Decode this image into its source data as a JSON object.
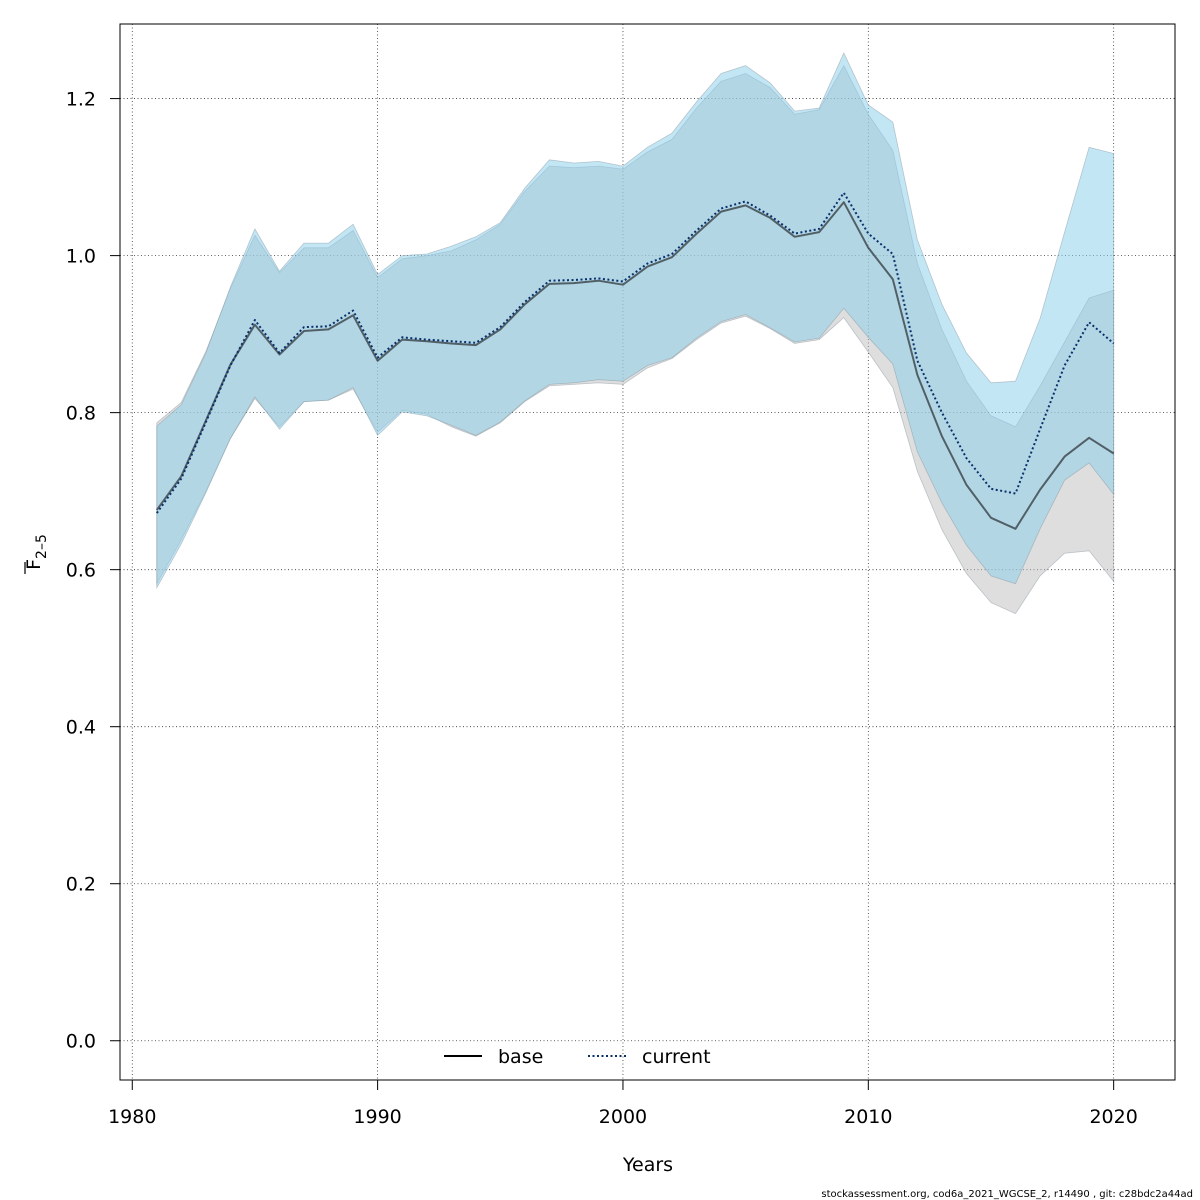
{
  "chart_data": {
    "type": "line",
    "xlabel": "Years",
    "ylabel": "F",
    "ylabel_sub": "2–5",
    "xlim": [
      1979.5,
      2022.5
    ],
    "ylim": [
      -0.05,
      1.295
    ],
    "xticks": [
      1980,
      1990,
      2000,
      2010,
      2020
    ],
    "yticks": [
      0.0,
      0.2,
      0.4,
      0.6,
      0.8,
      1.0,
      1.2
    ],
    "ytick_labels": [
      "0.0",
      "0.2",
      "0.4",
      "0.6",
      "0.8",
      "1.0",
      "1.2"
    ],
    "grid": true,
    "legend_position": "bottom",
    "footer": "stockassessment.org, cod6a_2021_WGCSE_2, r14490 , git: c28bdc2a44ad",
    "x": [
      1981,
      1982,
      1983,
      1984,
      1985,
      1986,
      1987,
      1988,
      1989,
      1990,
      1991,
      1992,
      1993,
      1994,
      1995,
      1996,
      1997,
      1998,
      1999,
      2000,
      2001,
      2002,
      2003,
      2004,
      2005,
      2006,
      2007,
      2008,
      2009,
      2010,
      2011,
      2012,
      2013,
      2014,
      2015,
      2016,
      2017,
      2018,
      2019,
      2020
    ],
    "series": [
      {
        "name": "base",
        "line_style": "solid",
        "line_color": "#000000",
        "band_color": "#bebebe",
        "values": [
          0.676,
          0.719,
          0.79,
          0.861,
          0.912,
          0.874,
          0.904,
          0.906,
          0.924,
          0.866,
          0.893,
          0.891,
          0.888,
          0.886,
          0.906,
          0.938,
          0.964,
          0.965,
          0.968,
          0.963,
          0.986,
          0.998,
          1.028,
          1.056,
          1.064,
          1.048,
          1.024,
          1.03,
          1.068,
          1.01,
          0.97,
          0.848,
          0.77,
          0.708,
          0.666,
          0.652,
          0.702,
          0.744,
          0.768,
          0.748
        ],
        "lower": [
          0.582,
          0.638,
          0.7,
          0.767,
          0.818,
          0.782,
          0.814,
          0.816,
          0.83,
          0.775,
          0.803,
          0.798,
          0.782,
          0.77,
          0.787,
          0.814,
          0.834,
          0.836,
          0.838,
          0.836,
          0.857,
          0.869,
          0.893,
          0.914,
          0.923,
          0.907,
          0.888,
          0.893,
          0.921,
          0.877,
          0.832,
          0.725,
          0.651,
          0.595,
          0.558,
          0.544,
          0.592,
          0.621,
          0.624,
          0.585
        ],
        "upper": [
          0.787,
          0.813,
          0.878,
          0.958,
          1.026,
          0.978,
          1.01,
          1.01,
          1.032,
          0.972,
          0.996,
          1.0,
          1.006,
          1.02,
          1.04,
          1.082,
          1.114,
          1.112,
          1.114,
          1.11,
          1.132,
          1.148,
          1.188,
          1.222,
          1.232,
          1.214,
          1.18,
          1.186,
          1.242,
          1.18,
          1.134,
          0.99,
          0.906,
          0.84,
          0.796,
          0.782,
          0.834,
          0.89,
          0.946,
          0.956
        ]
      },
      {
        "name": "current",
        "line_style": "dotted",
        "line_color": "#08306b",
        "band_color": "#87ceeb",
        "values": [
          0.672,
          0.716,
          0.788,
          0.86,
          0.918,
          0.876,
          0.909,
          0.91,
          0.93,
          0.87,
          0.896,
          0.893,
          0.891,
          0.889,
          0.909,
          0.941,
          0.968,
          0.969,
          0.971,
          0.967,
          0.99,
          1.002,
          1.032,
          1.06,
          1.069,
          1.051,
          1.028,
          1.034,
          1.08,
          1.028,
          1.002,
          0.866,
          0.8,
          0.742,
          0.703,
          0.697,
          0.779,
          0.86,
          0.915,
          0.888
        ],
        "lower": [
          0.577,
          0.633,
          0.698,
          0.767,
          0.82,
          0.779,
          0.814,
          0.816,
          0.832,
          0.771,
          0.801,
          0.796,
          0.784,
          0.771,
          0.788,
          0.815,
          0.836,
          0.838,
          0.842,
          0.84,
          0.86,
          0.87,
          0.895,
          0.916,
          0.925,
          0.908,
          0.89,
          0.895,
          0.933,
          0.896,
          0.862,
          0.75,
          0.685,
          0.631,
          0.592,
          0.582,
          0.652,
          0.714,
          0.736,
          0.696
        ],
        "upper": [
          0.783,
          0.81,
          0.876,
          0.96,
          1.034,
          0.98,
          1.016,
          1.016,
          1.04,
          0.976,
          1.0,
          1.002,
          1.012,
          1.024,
          1.042,
          1.086,
          1.122,
          1.118,
          1.12,
          1.114,
          1.138,
          1.156,
          1.196,
          1.232,
          1.242,
          1.22,
          1.184,
          1.188,
          1.258,
          1.192,
          1.17,
          1.02,
          0.938,
          0.876,
          0.838,
          0.84,
          0.92,
          1.03,
          1.138,
          1.13
        ]
      }
    ]
  }
}
